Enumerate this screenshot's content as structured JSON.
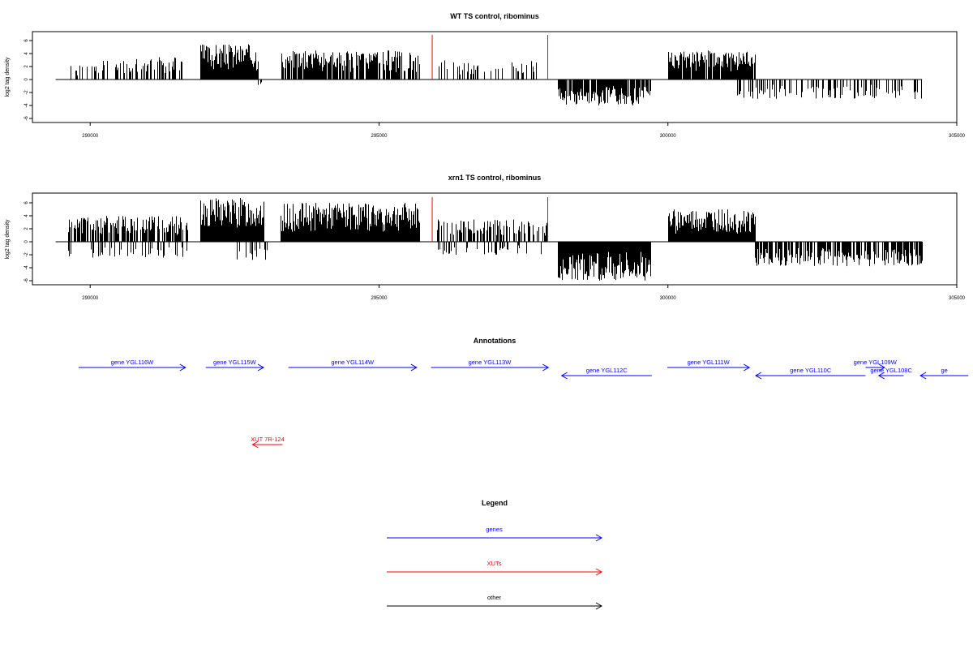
{
  "chart_data": [
    {
      "type": "bar",
      "title": "WT TS control, ribominus",
      "ylabel": "log2 tag density",
      "xlabel": "",
      "ylim": [
        -6.5,
        7
      ],
      "xlim": [
        289000,
        305000
      ],
      "x_ticks": [
        "290000",
        "295000",
        "300000",
        "305000"
      ],
      "y_ticks": [
        "6",
        "4",
        "2",
        "0",
        "-2",
        "-4",
        "-6"
      ],
      "baseline_range": [
        289400,
        304400
      ],
      "red_markers": [
        {
          "x": 295920,
          "value": 7
        },
        {
          "x": 297920,
          "value": 7
        }
      ],
      "segments": [
        {
          "start": 289600,
          "end": 290200,
          "sign": 1,
          "max": 2.2,
          "density": 0.3,
          "seed": 1
        },
        {
          "start": 290200,
          "end": 291600,
          "sign": 1,
          "max": 3.5,
          "density": 0.45,
          "seed": 2
        },
        {
          "start": 291900,
          "end": 292900,
          "sign": 1,
          "max": 5.5,
          "density": 1.0,
          "seed": 3
        },
        {
          "start": 292900,
          "end": 293000,
          "sign": -1,
          "max": 1.0,
          "density": 0.4,
          "seed": 4
        },
        {
          "start": 293300,
          "end": 295700,
          "sign": 1,
          "max": 4.5,
          "density": 0.8,
          "seed": 5
        },
        {
          "start": 296000,
          "end": 297900,
          "sign": 1,
          "max": 3.0,
          "density": 0.25,
          "seed": 6
        },
        {
          "start": 298100,
          "end": 299700,
          "sign": -1,
          "max": 4.0,
          "density": 0.9,
          "seed": 7
        },
        {
          "start": 300000,
          "end": 301500,
          "sign": 1,
          "max": 4.5,
          "density": 0.9,
          "seed": 8
        },
        {
          "start": 301200,
          "end": 304400,
          "sign": -1,
          "max": 3.0,
          "density": 0.35,
          "seed": 9
        }
      ]
    },
    {
      "type": "bar",
      "title": "xrn1 TS control, ribominus",
      "ylabel": "log2 tag density",
      "xlabel": "",
      "ylim": [
        -6.5,
        7
      ],
      "xlim": [
        289000,
        305000
      ],
      "x_ticks": [
        "290000",
        "295000",
        "300000",
        "305000"
      ],
      "y_ticks": [
        "6",
        "4",
        "2",
        "0",
        "-2",
        "-4",
        "-6"
      ],
      "baseline_range": [
        289400,
        304400
      ],
      "red_markers": [
        {
          "x": 295920,
          "value": 7
        },
        {
          "x": 297920,
          "value": 7
        }
      ],
      "segments": [
        {
          "start": 289600,
          "end": 291700,
          "sign": 1,
          "max": 4.0,
          "density": 0.7,
          "seed": 11
        },
        {
          "start": 289600,
          "end": 291700,
          "sign": -1,
          "max": 2.5,
          "density": 0.2,
          "seed": 12
        },
        {
          "start": 291900,
          "end": 293000,
          "sign": 1,
          "max": 6.8,
          "density": 1.0,
          "seed": 13
        },
        {
          "start": 292500,
          "end": 293050,
          "sign": -1,
          "max": 2.8,
          "density": 0.3,
          "seed": 14
        },
        {
          "start": 293300,
          "end": 295700,
          "sign": 1,
          "max": 6.0,
          "density": 1.0,
          "seed": 15
        },
        {
          "start": 296000,
          "end": 297900,
          "sign": 1,
          "max": 3.5,
          "density": 0.5,
          "seed": 16
        },
        {
          "start": 296000,
          "end": 297900,
          "sign": -1,
          "max": 2.0,
          "density": 0.2,
          "seed": 17
        },
        {
          "start": 298100,
          "end": 299700,
          "sign": -1,
          "max": 6.0,
          "density": 1.0,
          "seed": 18
        },
        {
          "start": 300000,
          "end": 301500,
          "sign": 1,
          "max": 5.0,
          "density": 1.0,
          "seed": 19
        },
        {
          "start": 301500,
          "end": 304400,
          "sign": -1,
          "max": 3.8,
          "density": 0.7,
          "seed": 20
        }
      ]
    }
  ],
  "annotations": {
    "title": "Annotations",
    "items": [
      {
        "label": "gene YGL116W",
        "start": 289800,
        "end": 291650,
        "row": 0,
        "strand": "+",
        "color": "#0000ff"
      },
      {
        "label": "gene YGL115W",
        "start": 292000,
        "end": 293000,
        "row": 0,
        "strand": "+",
        "color": "#0000ff"
      },
      {
        "label": "gene YGL114W",
        "start": 293430,
        "end": 295650,
        "row": 0,
        "strand": "+",
        "color": "#0000ff"
      },
      {
        "label": "gene YGL113W",
        "start": 295900,
        "end": 297930,
        "row": 0,
        "strand": "+",
        "color": "#0000ff"
      },
      {
        "label": "gene YGL112C",
        "start": 298160,
        "end": 299720,
        "row": 1,
        "strand": "-",
        "color": "#0000ff"
      },
      {
        "label": "gene YGL111W",
        "start": 299990,
        "end": 301410,
        "row": 0,
        "strand": "+",
        "color": "#0000ff"
      },
      {
        "label": "gene YGL110C",
        "start": 301520,
        "end": 303420,
        "row": 1,
        "strand": "-",
        "color": "#0000ff"
      },
      {
        "label": "gene YGL109W",
        "start": 303420,
        "end": 303750,
        "row": 0,
        "strand": "+",
        "color": "#0000ff"
      },
      {
        "label": "gene YGL108C",
        "start": 303650,
        "end": 304080,
        "row": 1,
        "strand": "-",
        "color": "#0000ff"
      },
      {
        "label": "ge",
        "start": 304370,
        "end": 305200,
        "row": 1,
        "strand": "-",
        "color": "#0000ff"
      },
      {
        "label": "XUT 7R-124",
        "start": 292810,
        "end": 293330,
        "row": 2,
        "strand": "-",
        "color": "#ff0000"
      }
    ]
  },
  "legend": {
    "title": "Legend",
    "items": [
      {
        "label": "genes",
        "color": "#0000ff"
      },
      {
        "label": "XUTs",
        "color": "#ff0000"
      },
      {
        "label": "other",
        "color": "#000000"
      }
    ]
  }
}
